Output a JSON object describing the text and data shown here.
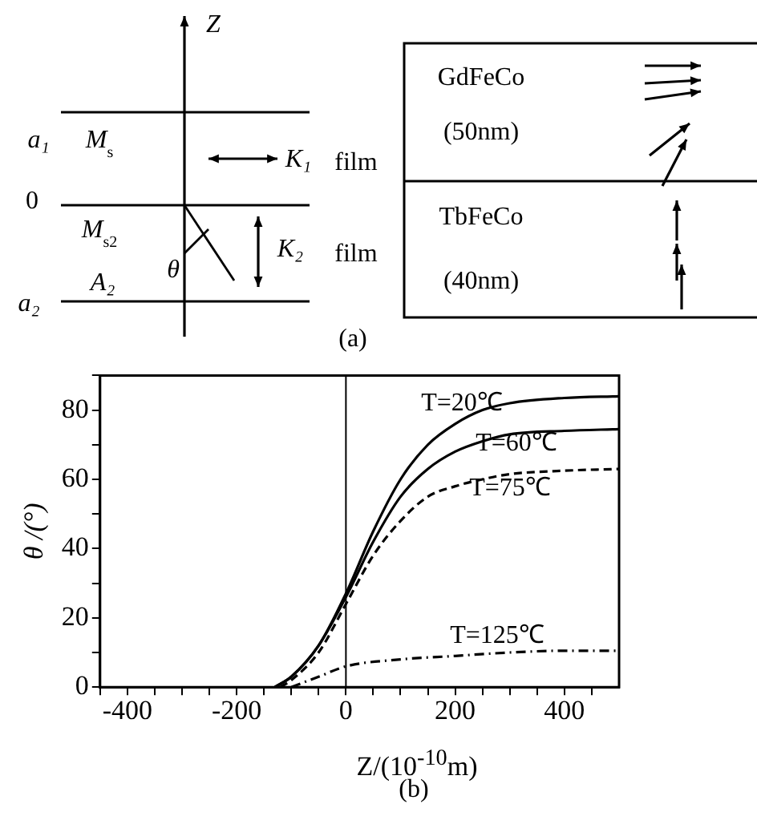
{
  "chart_data": {
    "type": "line",
    "xlabel": "Z/(10$^{-10}$m)",
    "ylabel": "θ /(°)",
    "xlim": [
      -450,
      500
    ],
    "xticks": [
      {
        "value": -450,
        "label": null
      },
      -400,
      {
        "value": -350,
        "label": null
      },
      {
        "value": -300,
        "label": null
      },
      {
        "value": -250,
        "label": null
      },
      -200,
      {
        "value": -150,
        "label": null
      },
      {
        "value": -100,
        "label": null
      },
      {
        "value": -50,
        "label": null
      },
      0,
      {
        "value": 50,
        "label": null
      },
      {
        "value": 100,
        "label": null
      },
      {
        "value": 150,
        "label": null
      },
      200,
      {
        "value": 250,
        "label": null
      },
      {
        "value": 300,
        "label": null
      },
      {
        "value": 350,
        "label": null
      },
      400,
      {
        "value": 450,
        "label": null
      }
    ],
    "ylim": [
      0,
      90
    ],
    "yticks": [
      0,
      {
        "value": 10,
        "label": null
      },
      20,
      {
        "value": 30,
        "label": null
      },
      40,
      {
        "value": 50,
        "label": null
      },
      60,
      {
        "value": 70,
        "label": null
      },
      80,
      {
        "value": 90,
        "label": null
      }
    ],
    "grid": false,
    "legend": false,
    "marker": "none",
    "ref_lines": [
      {
        "axis": "x",
        "value": 0,
        "color": "#000000"
      }
    ],
    "series": [
      {
        "name": "T=20℃",
        "color": "#000000",
        "line_style": "solid",
        "x": [
          -130,
          -100,
          -50,
          0,
          50,
          100,
          150,
          200,
          250,
          300,
          400,
          500
        ],
        "values": [
          0,
          3,
          12,
          27,
          45,
          60,
          70,
          76,
          80,
          82,
          83.5,
          84
        ]
      },
      {
        "name": "T=60℃",
        "color": "#000000",
        "line_style": "solid",
        "x": [
          -130,
          -100,
          -50,
          0,
          50,
          100,
          150,
          200,
          250,
          300,
          400,
          500
        ],
        "values": [
          0,
          3,
          12,
          26,
          42,
          55,
          63,
          68,
          71,
          73,
          74,
          74.5
        ]
      },
      {
        "name": "T=75℃",
        "color": "#000000",
        "line_style": "dashed",
        "x": [
          -120,
          -100,
          -50,
          0,
          50,
          100,
          150,
          200,
          250,
          300,
          400,
          500
        ],
        "values": [
          0,
          2,
          10,
          24,
          38,
          48,
          55,
          58,
          60,
          61.5,
          62.5,
          63
        ]
      },
      {
        "name": "T=125℃",
        "color": "#000000",
        "line_style": "dotted",
        "x": [
          -100,
          -50,
          0,
          100,
          200,
          300,
          400,
          500
        ],
        "values": [
          0,
          3,
          6,
          8,
          9,
          10,
          10.5,
          10.5
        ]
      }
    ],
    "annotations": [
      "Z",
      "a₁",
      "M$_{s}$",
      "K₁",
      "film",
      "0",
      "M$_{s2}$",
      "K₂",
      "film",
      "θ",
      "A₂",
      "a₂",
      "GdFeCo",
      "(50nm)",
      "TbFeCo",
      "(40nm)",
      "(a)",
      "(b)"
    ]
  }
}
